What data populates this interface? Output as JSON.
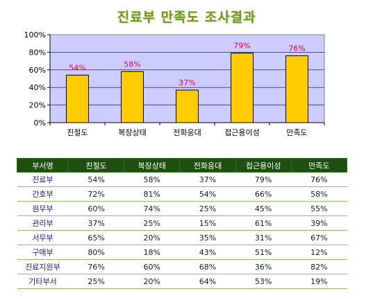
{
  "title": "진료부 만족도 조사결과",
  "colors": {
    "bar": "#ffcc00",
    "bar_stroke": "#000000",
    "plot_bg": "#ccccff",
    "data_label": "#e0003c",
    "header_bg": "#1f4f10",
    "title": "#6f9a18"
  },
  "chart_data": {
    "type": "bar",
    "categories": [
      "친절도",
      "복장상태",
      "전화응대",
      "접근용이성",
      "만족도"
    ],
    "values": [
      54,
      58,
      37,
      79,
      76
    ],
    "data_labels": [
      "54%",
      "58%",
      "37%",
      "79%",
      "76%"
    ],
    "ylim": [
      0,
      100
    ],
    "yticks": [
      "0%",
      "20%",
      "40%",
      "60%",
      "80%",
      "100%"
    ],
    "grid": true,
    "legend": "none"
  },
  "table": {
    "headers": [
      "부서명",
      "친절도",
      "복장상태",
      "전화응대",
      "접근용이성",
      "만족도"
    ],
    "rows": [
      [
        "진료부",
        "54%",
        "58%",
        "37%",
        "79%",
        "76%"
      ],
      [
        "간호부",
        "72%",
        "81%",
        "54%",
        "66%",
        "58%"
      ],
      [
        "원무부",
        "60%",
        "74%",
        "25%",
        "45%",
        "55%"
      ],
      [
        "관리부",
        "37%",
        "25%",
        "15%",
        "61%",
        "39%"
      ],
      [
        "서무부",
        "65%",
        "20%",
        "35%",
        "31%",
        "67%"
      ],
      [
        "구매부",
        "80%",
        "18%",
        "43%",
        "51%",
        "12%"
      ],
      [
        "진료지원부",
        "76%",
        "60%",
        "68%",
        "36%",
        "82%"
      ],
      [
        "기타부서",
        "25%",
        "20%",
        "64%",
        "53%",
        "19%"
      ]
    ]
  }
}
